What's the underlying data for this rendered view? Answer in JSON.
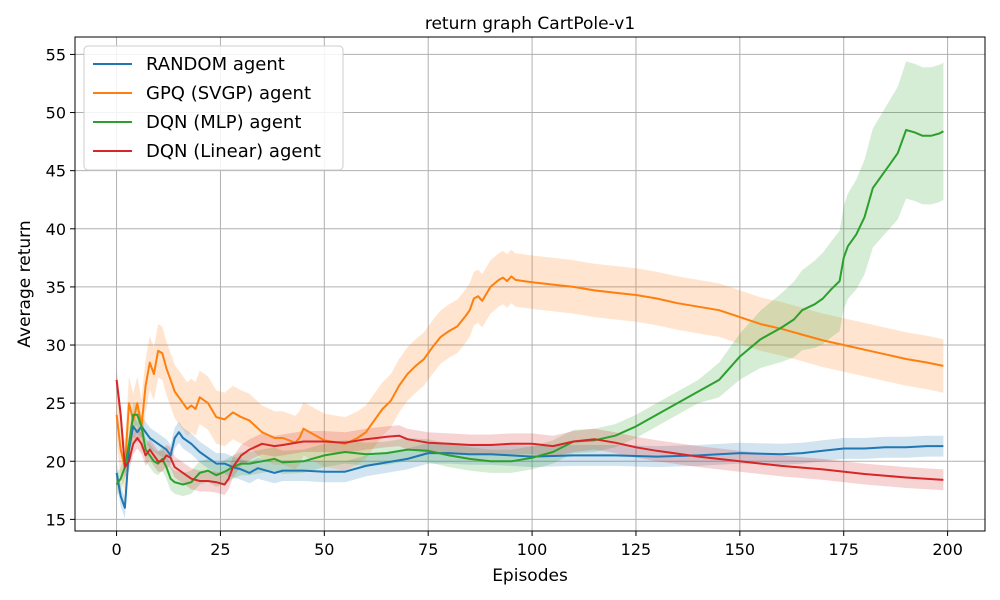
{
  "chart_data": {
    "type": "line",
    "title": "return graph CartPole-v1",
    "xlabel": "Episodes",
    "ylabel": "Average return",
    "xlim": [
      -10,
      209
    ],
    "ylim": [
      14,
      56.5
    ],
    "xticks": [
      0,
      25,
      50,
      75,
      100,
      125,
      150,
      175,
      200
    ],
    "yticks": [
      15,
      20,
      25,
      30,
      35,
      40,
      45,
      50,
      55
    ],
    "grid": true,
    "legend_position": "top-left",
    "series": [
      {
        "name": "RANDOM agent",
        "color": "#1f77b4",
        "x": [
          0,
          1,
          2,
          3,
          4,
          5,
          6,
          8,
          10,
          12,
          13,
          14,
          15,
          16,
          18,
          20,
          22,
          24,
          26,
          28,
          30,
          32,
          34,
          36,
          38,
          40,
          45,
          50,
          55,
          60,
          65,
          70,
          75,
          80,
          85,
          90,
          95,
          100,
          110,
          120,
          130,
          140,
          150,
          160,
          165,
          170,
          175,
          180,
          185,
          190,
          195,
          199
        ],
        "y": [
          19,
          17,
          16,
          21,
          23,
          22.5,
          23,
          22,
          21.5,
          21,
          20.5,
          22,
          22.5,
          22,
          21.5,
          20.8,
          20.3,
          19.8,
          19.8,
          19.5,
          19.3,
          19.0,
          19.4,
          19.2,
          19.0,
          19.2,
          19.2,
          19.1,
          19.1,
          19.6,
          19.9,
          20.2,
          20.7,
          20.7,
          20.6,
          20.6,
          20.5,
          20.4,
          20.5,
          20.5,
          20.4,
          20.5,
          20.7,
          20.6,
          20.7,
          20.9,
          21.1,
          21.1,
          21.2,
          21.2,
          21.3,
          21.3
        ],
        "band": 0.9
      },
      {
        "name": "GPQ (SVGP) agent",
        "color": "#ff7f0e",
        "x": [
          0,
          1,
          2,
          3,
          4,
          5,
          6,
          7,
          8,
          9,
          10,
          11,
          12,
          13,
          14,
          15,
          17,
          18,
          19,
          20,
          22,
          24,
          26,
          28,
          30,
          32,
          35,
          38,
          40,
          43,
          44,
          45,
          48,
          50,
          55,
          58,
          60,
          62,
          64,
          66,
          68,
          70,
          72,
          74,
          76,
          78,
          80,
          82,
          84,
          85,
          86,
          87,
          88,
          90,
          92,
          93,
          94,
          95,
          96,
          98,
          100,
          105,
          110,
          115,
          120,
          125,
          130,
          135,
          140,
          145,
          150,
          155,
          160,
          165,
          170,
          175,
          180,
          185,
          190,
          195,
          199
        ],
        "y": [
          24,
          21,
          19.5,
          25,
          23.5,
          25,
          23,
          26.5,
          28.5,
          27.5,
          29.5,
          29.3,
          28,
          27,
          26,
          25.5,
          24.5,
          24.8,
          24.5,
          25.5,
          25,
          23.8,
          23.6,
          24.2,
          23.8,
          23.5,
          22.5,
          22,
          22,
          21.6,
          22,
          22.8,
          22.2,
          21.8,
          21.5,
          22,
          22.5,
          23.5,
          24.5,
          25.2,
          26.5,
          27.5,
          28.2,
          28.8,
          29.8,
          30.7,
          31.2,
          31.6,
          32.5,
          33,
          34,
          34.2,
          33.8,
          35,
          35.6,
          35.8,
          35.5,
          35.9,
          35.6,
          35.5,
          35.4,
          35.2,
          35,
          34.7,
          34.5,
          34.3,
          34,
          33.6,
          33.3,
          33,
          32.4,
          31.8,
          31.4,
          30.9,
          30.4,
          30,
          29.6,
          29.2,
          28.8,
          28.5,
          28.2
        ],
        "band": 2.3
      },
      {
        "name": "DQN (MLP) agent",
        "color": "#2ca02c",
        "x": [
          0,
          1,
          2,
          3,
          4,
          5,
          6,
          7,
          8,
          9,
          10,
          11,
          12,
          13,
          14,
          16,
          18,
          20,
          22,
          24,
          26,
          28,
          30,
          32,
          35,
          38,
          40,
          45,
          50,
          55,
          60,
          65,
          70,
          75,
          80,
          85,
          90,
          95,
          100,
          105,
          110,
          115,
          120,
          125,
          130,
          135,
          140,
          145,
          150,
          155,
          160,
          163,
          165,
          168,
          170,
          172,
          174,
          175,
          176,
          178,
          180,
          182,
          184,
          186,
          188,
          189,
          190,
          192,
          194,
          196,
          198,
          199
        ],
        "y": [
          18,
          18.5,
          19.5,
          21.5,
          24,
          24,
          23,
          21,
          20.5,
          20,
          19.8,
          20.2,
          19.5,
          18.5,
          18.2,
          18,
          18.2,
          19,
          19.2,
          18.8,
          19.1,
          19.5,
          19.8,
          19.8,
          20,
          20.2,
          19.9,
          20,
          20.5,
          20.8,
          20.6,
          20.7,
          21,
          20.9,
          20.5,
          20.2,
          20.0,
          20.0,
          20.3,
          20.8,
          21.7,
          21.8,
          22.2,
          23,
          24,
          25,
          26,
          27,
          29,
          30.5,
          31.5,
          32.2,
          33,
          33.5,
          34,
          34.8,
          35.5,
          37.5,
          38.5,
          39.5,
          41,
          43.5,
          44.5,
          45.5,
          46.5,
          47.5,
          48.5,
          48.3,
          48.0,
          48.0,
          48.2,
          48.4
        ],
        "band": 1.0,
        "band_end": 5.9
      },
      {
        "name": "DQN (Linear) agent",
        "color": "#d62728",
        "x": [
          0,
          1,
          2,
          3,
          4,
          5,
          6,
          7,
          8,
          9,
          10,
          11,
          12,
          13,
          14,
          16,
          18,
          20,
          22,
          24,
          26,
          27,
          28,
          30,
          32,
          35,
          38,
          40,
          45,
          50,
          55,
          60,
          65,
          68,
          70,
          75,
          80,
          85,
          90,
          95,
          100,
          105,
          110,
          115,
          120,
          125,
          130,
          140,
          150,
          160,
          170,
          180,
          190,
          199
        ],
        "y": [
          27,
          24,
          19.5,
          20,
          21.5,
          22,
          21.5,
          20.5,
          21,
          20.5,
          20,
          20,
          20.5,
          20.3,
          19.5,
          19,
          18.5,
          18.3,
          18.3,
          18.2,
          18,
          18.5,
          19.5,
          20.5,
          21,
          21.5,
          21.3,
          21.4,
          21.7,
          21.7,
          21.6,
          21.9,
          22.1,
          22.2,
          21.9,
          21.6,
          21.5,
          21.4,
          21.4,
          21.5,
          21.5,
          21.3,
          21.7,
          21.9,
          21.6,
          21.2,
          20.9,
          20.4,
          20.0,
          19.6,
          19.3,
          18.9,
          18.6,
          18.4
        ],
        "band": 0.9
      }
    ]
  }
}
